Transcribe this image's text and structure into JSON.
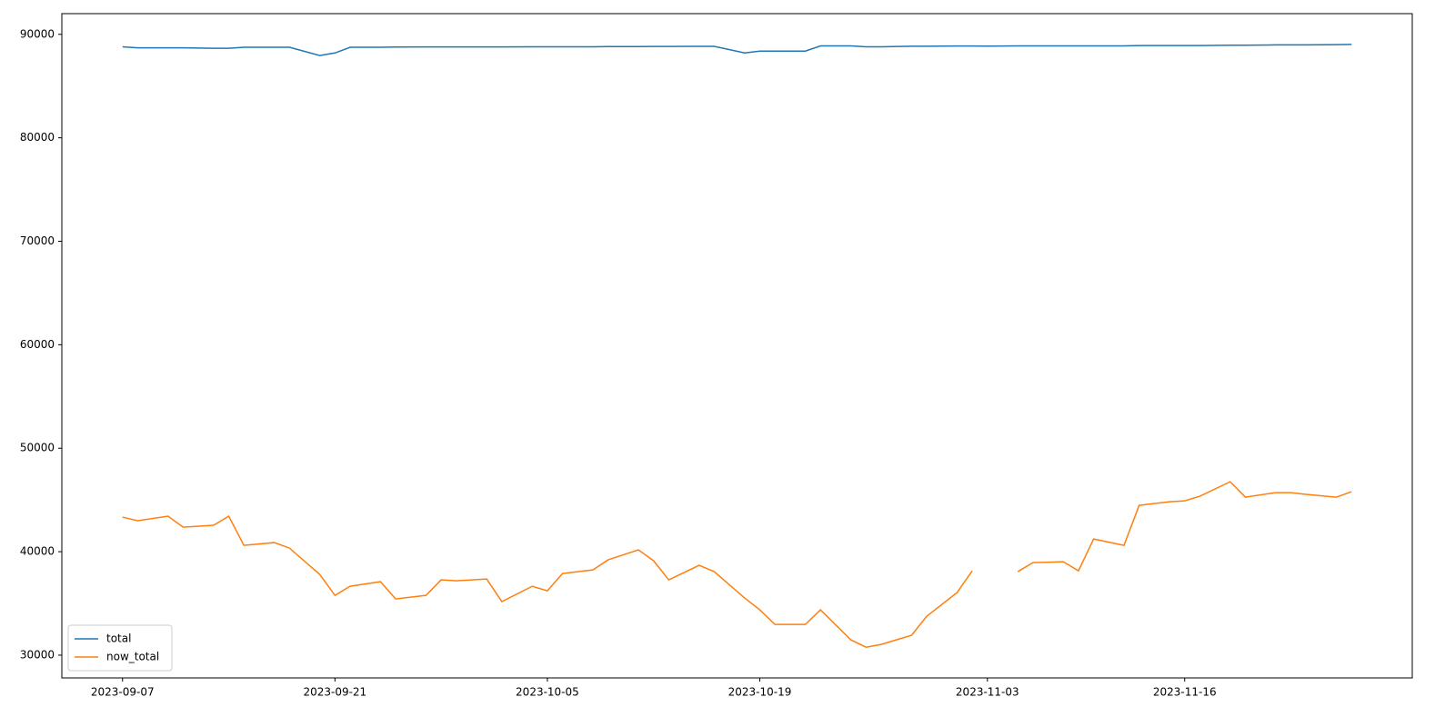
{
  "chart_data": {
    "type": "line",
    "x": [
      "2023-09-07",
      "2023-09-08",
      "2023-09-10",
      "2023-09-11",
      "2023-09-13",
      "2023-09-14",
      "2023-09-15",
      "2023-09-17",
      "2023-09-18",
      "2023-09-20",
      "2023-09-21",
      "2023-09-22",
      "2023-09-24",
      "2023-09-25",
      "2023-09-27",
      "2023-09-28",
      "2023-09-29",
      "2023-10-01",
      "2023-10-02",
      "2023-10-04",
      "2023-10-05",
      "2023-10-06",
      "2023-10-08",
      "2023-10-09",
      "2023-10-11",
      "2023-10-12",
      "2023-10-13",
      "2023-10-15",
      "2023-10-16",
      "2023-10-18",
      "2023-10-19",
      "2023-10-20",
      "2023-10-22",
      "2023-10-23",
      "2023-10-25",
      "2023-10-26",
      "2023-10-27",
      "2023-10-29",
      "2023-10-30",
      "2023-11-01",
      "2023-11-02",
      "2023-11-03",
      "2023-11-05",
      "2023-11-06",
      "2023-11-08",
      "2023-11-09",
      "2023-11-10",
      "2023-11-12",
      "2023-11-13",
      "2023-11-15",
      "2023-11-16",
      "2023-11-17",
      "2023-11-19",
      "2023-11-20",
      "2023-11-22",
      "2023-11-23",
      "2023-11-24",
      "2023-11-26",
      "2023-11-27"
    ],
    "series": [
      {
        "name": "total",
        "color": "#1f77b4",
        "values": [
          88800,
          88700,
          88700,
          88700,
          88650,
          88650,
          88750,
          88750,
          88750,
          87950,
          88200,
          88750,
          88750,
          88770,
          88780,
          88780,
          88780,
          88780,
          88780,
          88800,
          88800,
          88800,
          88800,
          88820,
          88820,
          88830,
          88830,
          88840,
          88840,
          88200,
          88380,
          88380,
          88380,
          88880,
          88880,
          88800,
          88800,
          88850,
          88850,
          88870,
          88870,
          88860,
          88880,
          88880,
          88880,
          88880,
          88880,
          88880,
          88920,
          88920,
          88920,
          88920,
          88950,
          88950,
          88980,
          88980,
          88980,
          89000,
          89020
        ]
      },
      {
        "name": "now_total",
        "color": "#ff7f0e",
        "values": [
          43340,
          42990,
          43430,
          42370,
          42550,
          43430,
          40610,
          40880,
          40350,
          37800,
          35780,
          36660,
          37100,
          35430,
          35780,
          37280,
          37190,
          37360,
          35170,
          36660,
          36220,
          37890,
          38240,
          39210,
          40180,
          39120,
          37280,
          38680,
          38070,
          35520,
          34380,
          32970,
          32970,
          34380,
          31480,
          30770,
          31040,
          31920,
          33760,
          36050,
          38150,
          null,
          38070,
          38940,
          39030,
          38150,
          41230,
          40610,
          44480,
          44830,
          44920,
          45360,
          46760,
          45270,
          45710,
          45710,
          45540,
          45270,
          45800
        ]
      }
    ],
    "xlim": [
      "2023-09-03",
      "2023-12-01"
    ],
    "xticks": [
      "2023-09-07",
      "2023-09-21",
      "2023-10-05",
      "2023-10-19",
      "2023-11-03",
      "2023-11-16"
    ],
    "ylim": [
      27800,
      92000
    ],
    "yticks": [
      30000,
      40000,
      50000,
      60000,
      70000,
      80000,
      90000
    ],
    "legend": "lower left",
    "grid": false
  }
}
